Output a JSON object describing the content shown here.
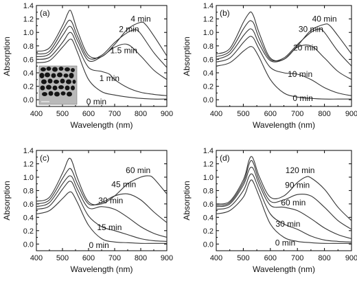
{
  "chart_data": [
    {
      "type": "line",
      "panel_label": "(a)",
      "xlabel": "Wavelength (nm)",
      "ylabel": "Absorption",
      "xlim": [
        400,
        900
      ],
      "ylim": [
        -0.1,
        1.4
      ],
      "xticks": [
        "400",
        "500",
        "600",
        "700",
        "800",
        "900"
      ],
      "yticks": [
        "0.0",
        "0.2",
        "0.4",
        "0.6",
        "0.8",
        "1.0",
        "1.2",
        "1.4"
      ],
      "inset": "TEM micrograph of nanoparticles",
      "series": [
        {
          "name": "0 min",
          "x": [
            400,
            450,
            500,
            520,
            530,
            540,
            560,
            600,
            650,
            700,
            750,
            800,
            850,
            900
          ],
          "values": [
            0.55,
            0.58,
            0.78,
            0.87,
            0.9,
            0.87,
            0.68,
            0.3,
            0.12,
            0.07,
            0.04,
            0.02,
            0.01,
            0.01
          ]
        },
        {
          "name": "1 min",
          "x": [
            400,
            450,
            500,
            520,
            530,
            540,
            560,
            600,
            650,
            680,
            700,
            750,
            800,
            850,
            900
          ],
          "values": [
            0.6,
            0.63,
            0.85,
            0.97,
            1.0,
            0.96,
            0.78,
            0.48,
            0.42,
            0.38,
            0.3,
            0.18,
            0.11,
            0.08,
            0.06
          ]
        },
        {
          "name": "1.5 min",
          "x": [
            400,
            450,
            500,
            520,
            530,
            540,
            560,
            600,
            650,
            700,
            750,
            800,
            850,
            900
          ],
          "values": [
            0.64,
            0.68,
            0.95,
            1.07,
            1.09,
            1.04,
            0.86,
            0.58,
            0.64,
            0.78,
            0.82,
            0.65,
            0.44,
            0.3
          ]
        },
        {
          "name": "2 min",
          "x": [
            400,
            450,
            500,
            520,
            530,
            540,
            560,
            600,
            650,
            700,
            750,
            780,
            800,
            850,
            900
          ],
          "values": [
            0.68,
            0.72,
            1.03,
            1.16,
            1.18,
            1.12,
            0.92,
            0.62,
            0.66,
            0.85,
            1.0,
            1.04,
            0.98,
            0.7,
            0.48
          ]
        },
        {
          "name": "4 min",
          "x": [
            400,
            450,
            500,
            520,
            530,
            540,
            560,
            600,
            650,
            700,
            750,
            800,
            820,
            850,
            900
          ],
          "values": [
            0.72,
            0.77,
            1.1,
            1.28,
            1.33,
            1.24,
            1.0,
            0.66,
            0.64,
            0.82,
            1.05,
            1.15,
            1.11,
            0.95,
            0.65
          ]
        }
      ],
      "curve_labels": [
        {
          "text": "4 min",
          "x": 800,
          "y": 1.2
        },
        {
          "text": "2 min",
          "x": 755,
          "y": 1.05
        },
        {
          "text": "1.5 min",
          "x": 735,
          "y": 0.73
        },
        {
          "text": "1 min",
          "x": 680,
          "y": 0.32
        },
        {
          "text": "0 min",
          "x": 630,
          "y": -0.03
        }
      ]
    },
    {
      "type": "line",
      "panel_label": "(b)",
      "xlabel": "Wavelength (nm)",
      "ylabel": "Absorption",
      "xlim": [
        400,
        900
      ],
      "ylim": [
        -0.1,
        1.4
      ],
      "xticks": [
        "400",
        "500",
        "600",
        "700",
        "800",
        "900"
      ],
      "yticks": [
        "0.0",
        "0.2",
        "0.4",
        "0.6",
        "0.8",
        "1.0",
        "1.2",
        "1.4"
      ],
      "series": [
        {
          "name": "0 min",
          "x": [
            400,
            450,
            500,
            520,
            530,
            540,
            560,
            600,
            650,
            700,
            750,
            800,
            850,
            900
          ],
          "values": [
            0.5,
            0.55,
            0.72,
            0.78,
            0.79,
            0.76,
            0.62,
            0.3,
            0.1,
            0.04,
            0.02,
            0.01,
            0.01,
            0.01
          ]
        },
        {
          "name": "10 min",
          "x": [
            400,
            450,
            500,
            520,
            530,
            540,
            560,
            600,
            650,
            700,
            750,
            800,
            850,
            900
          ],
          "values": [
            0.56,
            0.62,
            0.85,
            0.93,
            0.94,
            0.9,
            0.74,
            0.48,
            0.4,
            0.38,
            0.3,
            0.18,
            0.1,
            0.06
          ]
        },
        {
          "name": "20 min",
          "x": [
            400,
            450,
            500,
            520,
            530,
            540,
            560,
            600,
            650,
            700,
            750,
            800,
            850,
            900
          ],
          "values": [
            0.6,
            0.68,
            0.95,
            1.04,
            1.05,
            1.0,
            0.82,
            0.58,
            0.6,
            0.78,
            0.8,
            0.62,
            0.42,
            0.3
          ]
        },
        {
          "name": "30 min",
          "x": [
            400,
            450,
            500,
            520,
            530,
            540,
            560,
            600,
            650,
            700,
            750,
            780,
            800,
            850,
            900
          ],
          "values": [
            0.64,
            0.72,
            1.05,
            1.16,
            1.17,
            1.12,
            0.9,
            0.6,
            0.62,
            0.82,
            1.0,
            1.05,
            1.0,
            0.72,
            0.5
          ]
        },
        {
          "name": "40 min",
          "x": [
            400,
            450,
            500,
            520,
            530,
            540,
            560,
            600,
            650,
            700,
            750,
            800,
            820,
            850,
            900
          ],
          "values": [
            0.68,
            0.76,
            1.15,
            1.28,
            1.3,
            1.22,
            0.98,
            0.62,
            0.6,
            0.8,
            1.03,
            1.12,
            1.1,
            0.95,
            0.68
          ]
        }
      ],
      "curve_labels": [
        {
          "text": "40 min",
          "x": 800,
          "y": 1.2
        },
        {
          "text": "30 min",
          "x": 750,
          "y": 1.05
        },
        {
          "text": "20 min",
          "x": 730,
          "y": 0.77
        },
        {
          "text": "10 min",
          "x": 710,
          "y": 0.38
        },
        {
          "text": "0 min",
          "x": 720,
          "y": 0.02
        }
      ]
    },
    {
      "type": "line",
      "panel_label": "(c)",
      "xlabel": "Wavelength (nm)",
      "ylabel": "Absorption",
      "xlim": [
        400,
        900
      ],
      "ylim": [
        -0.1,
        1.4
      ],
      "xticks": [
        "400",
        "500",
        "600",
        "700",
        "800",
        "900"
      ],
      "yticks": [
        "0.0",
        "0.2",
        "0.4",
        "0.6",
        "0.8",
        "1.0",
        "1.2",
        "1.4"
      ],
      "series": [
        {
          "name": "0 min",
          "x": [
            400,
            450,
            500,
            520,
            530,
            540,
            560,
            600,
            650,
            700,
            750,
            800,
            850,
            900
          ],
          "values": [
            0.45,
            0.5,
            0.68,
            0.76,
            0.78,
            0.75,
            0.6,
            0.28,
            0.08,
            0.03,
            0.02,
            0.01,
            0.01,
            0.01
          ]
        },
        {
          "name": "15 min",
          "x": [
            400,
            450,
            500,
            520,
            530,
            540,
            560,
            600,
            650,
            700,
            750,
            800,
            850,
            900
          ],
          "values": [
            0.52,
            0.57,
            0.82,
            0.92,
            0.94,
            0.9,
            0.72,
            0.42,
            0.26,
            0.2,
            0.14,
            0.08,
            0.05,
            0.04
          ]
        },
        {
          "name": "30 min",
          "x": [
            400,
            450,
            500,
            520,
            530,
            540,
            560,
            600,
            650,
            700,
            750,
            800,
            850,
            900
          ],
          "values": [
            0.56,
            0.62,
            0.9,
            1.0,
            1.02,
            0.98,
            0.8,
            0.54,
            0.56,
            0.52,
            0.4,
            0.26,
            0.16,
            0.1
          ]
        },
        {
          "name": "45 min",
          "x": [
            400,
            450,
            500,
            520,
            530,
            540,
            560,
            600,
            650,
            700,
            750,
            800,
            850,
            900
          ],
          "values": [
            0.6,
            0.66,
            0.98,
            1.1,
            1.13,
            1.07,
            0.88,
            0.6,
            0.62,
            0.72,
            0.75,
            0.66,
            0.48,
            0.32
          ]
        },
        {
          "name": "60 min",
          "x": [
            400,
            450,
            500,
            520,
            530,
            540,
            560,
            600,
            650,
            700,
            750,
            800,
            830,
            850,
            900
          ],
          "values": [
            0.64,
            0.7,
            1.06,
            1.25,
            1.28,
            1.2,
            0.96,
            0.63,
            0.6,
            0.72,
            0.9,
            1.0,
            1.02,
            0.98,
            0.75
          ]
        }
      ],
      "curve_labels": [
        {
          "text": "60 min",
          "x": 790,
          "y": 1.1
        },
        {
          "text": "45 min",
          "x": 735,
          "y": 0.89
        },
        {
          "text": "30 min",
          "x": 685,
          "y": 0.65
        },
        {
          "text": "15 min",
          "x": 680,
          "y": 0.25
        },
        {
          "text": "0 min",
          "x": 640,
          "y": -0.02
        }
      ]
    },
    {
      "type": "line",
      "panel_label": "(d)",
      "xlabel": "Wavelength (nm)",
      "ylabel": "Absorption",
      "xlim": [
        400,
        900
      ],
      "ylim": [
        -0.1,
        1.4
      ],
      "xticks": [
        "400",
        "500",
        "600",
        "700",
        "800",
        "900"
      ],
      "yticks": [
        "0.0",
        "0.2",
        "0.4",
        "0.6",
        "0.8",
        "1.0",
        "1.2",
        "1.4"
      ],
      "series": [
        {
          "name": "0 min",
          "x": [
            400,
            450,
            500,
            520,
            530,
            540,
            560,
            600,
            650,
            700,
            750,
            800,
            850,
            900
          ],
          "values": [
            0.45,
            0.5,
            0.7,
            0.9,
            0.96,
            0.9,
            0.7,
            0.3,
            0.1,
            0.04,
            0.02,
            0.01,
            0.01,
            0.01
          ]
        },
        {
          "name": "30 min",
          "x": [
            400,
            450,
            500,
            520,
            530,
            540,
            560,
            600,
            650,
            700,
            750,
            800,
            850,
            900
          ],
          "values": [
            0.52,
            0.56,
            0.8,
            1.0,
            1.05,
            1.0,
            0.8,
            0.45,
            0.3,
            0.22,
            0.12,
            0.06,
            0.04,
            0.03
          ]
        },
        {
          "name": "60 min",
          "x": [
            400,
            450,
            500,
            520,
            530,
            540,
            560,
            600,
            650,
            700,
            750,
            800,
            850,
            900
          ],
          "values": [
            0.56,
            0.6,
            0.88,
            1.1,
            1.15,
            1.1,
            0.88,
            0.58,
            0.55,
            0.5,
            0.38,
            0.24,
            0.14,
            0.08
          ]
        },
        {
          "name": "90 min",
          "x": [
            400,
            450,
            500,
            520,
            530,
            540,
            560,
            600,
            650,
            700,
            750,
            800,
            850,
            900
          ],
          "values": [
            0.58,
            0.62,
            0.92,
            1.18,
            1.25,
            1.18,
            0.94,
            0.64,
            0.66,
            0.74,
            0.72,
            0.55,
            0.35,
            0.22
          ]
        },
        {
          "name": "120 min",
          "x": [
            400,
            450,
            500,
            520,
            530,
            540,
            560,
            600,
            650,
            700,
            730,
            750,
            800,
            850,
            900
          ],
          "values": [
            0.6,
            0.64,
            0.96,
            1.24,
            1.31,
            1.24,
            1.0,
            0.7,
            0.72,
            0.92,
            1.0,
            0.99,
            0.82,
            0.55,
            0.35
          ]
        }
      ],
      "curve_labels": [
        {
          "text": "120 min",
          "x": 710,
          "y": 1.1
        },
        {
          "text": "90 min",
          "x": 700,
          "y": 0.88
        },
        {
          "text": "60 min",
          "x": 685,
          "y": 0.62
        },
        {
          "text": "30 min",
          "x": 665,
          "y": 0.3
        },
        {
          "text": "0 min",
          "x": 655,
          "y": 0.02
        }
      ]
    }
  ]
}
